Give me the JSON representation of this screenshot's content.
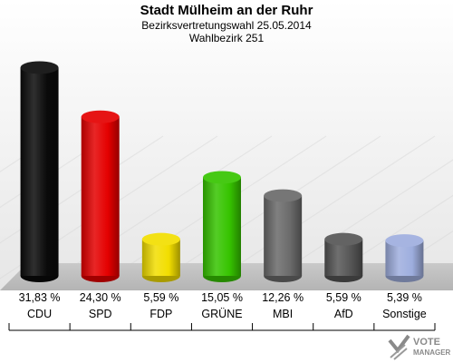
{
  "chart_data": {
    "type": "bar",
    "title": "Stadt Mülheim an der Ruhr",
    "subtitle": "Bezirksvertretungswahl 25.05.2014",
    "subtitle2": "Wahlbezirk 251",
    "categories": [
      "CDU",
      "SPD",
      "FDP",
      "GRÜNE",
      "MBI",
      "AfD",
      "Sonstige"
    ],
    "values": [
      31.83,
      24.3,
      5.59,
      15.05,
      12.26,
      5.59,
      5.39
    ],
    "value_labels": [
      "31,83 %",
      "24,30 %",
      "5,59 %",
      "15,05 %",
      "12,26 %",
      "5,59 %",
      "5,39 %"
    ],
    "colors": [
      "#0a0a0a",
      "#e40000",
      "#f2de00",
      "#36c400",
      "#6a6a6a",
      "#555555",
      "#9eaede"
    ],
    "ylim": [
      0,
      33
    ]
  },
  "logo": {
    "line1": "VOTE",
    "line2": "MANAGER"
  }
}
